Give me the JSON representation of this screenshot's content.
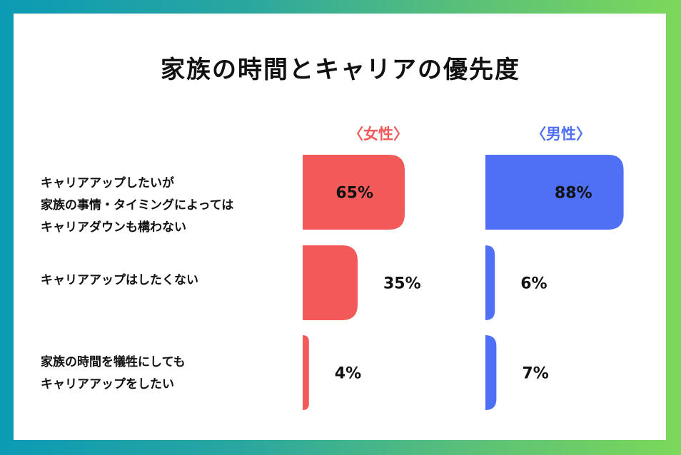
{
  "colors": {
    "female": "#f25a5a",
    "male": "#4f6ff5",
    "text": "#111111"
  },
  "chart_data": {
    "type": "bar",
    "title": "家族の時間とキャリアの優先度",
    "categories": [
      [
        "キャリアアップしたいが",
        "家族の事情・タイミングによっては",
        "キャリアダウンも構わない"
      ],
      [
        "キャリアアップはしたくない"
      ],
      [
        "家族の時間を犠牲にしても",
        "キャリアアップをしたい"
      ]
    ],
    "series": [
      {
        "name": "〈女性〉",
        "values": [
          65,
          35,
          4
        ],
        "labels": [
          "65%",
          "35%",
          "4%"
        ]
      },
      {
        "name": "〈男性〉",
        "values": [
          88,
          6,
          7
        ],
        "labels": [
          "88%",
          "6%",
          "7%"
        ]
      }
    ]
  }
}
